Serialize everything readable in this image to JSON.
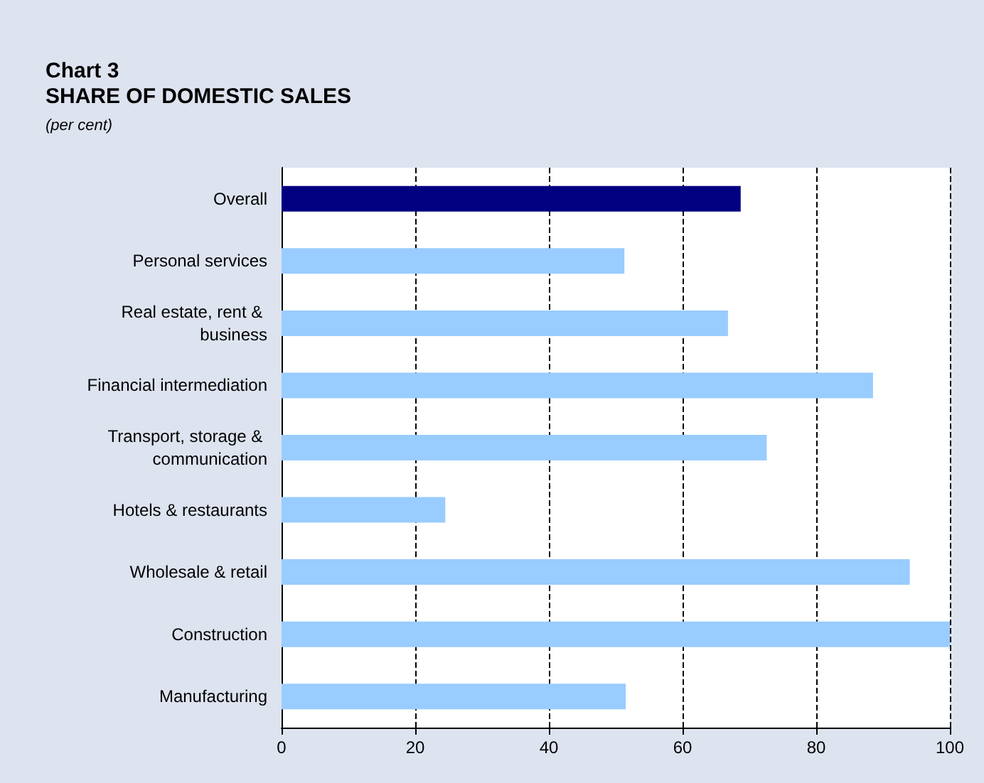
{
  "chart_data": {
    "type": "bar",
    "orientation": "horizontal",
    "title": "Chart 3\nSHARE OF DOMESTIC SALES",
    "subtitle": "(per cent)",
    "categories": [
      "Overall",
      "Personal services",
      "Real estate, rent & business",
      "Financial intermediation",
      "Transport, storage & communication",
      "Hotels & restaurants",
      "Wholesale & retail",
      "Construction",
      "Manufacturing"
    ],
    "values": [
      68.7,
      51.3,
      66.8,
      88.5,
      72.6,
      24.5,
      94,
      100,
      51.5
    ],
    "colors": [
      "#000080",
      "#99ccff",
      "#99ccff",
      "#99ccff",
      "#99ccff",
      "#99ccff",
      "#99ccff",
      "#99ccff",
      "#99ccff"
    ],
    "xlim": [
      0,
      100
    ],
    "xticks": [
      0,
      20,
      40,
      60,
      80,
      100
    ],
    "grid": "x"
  }
}
